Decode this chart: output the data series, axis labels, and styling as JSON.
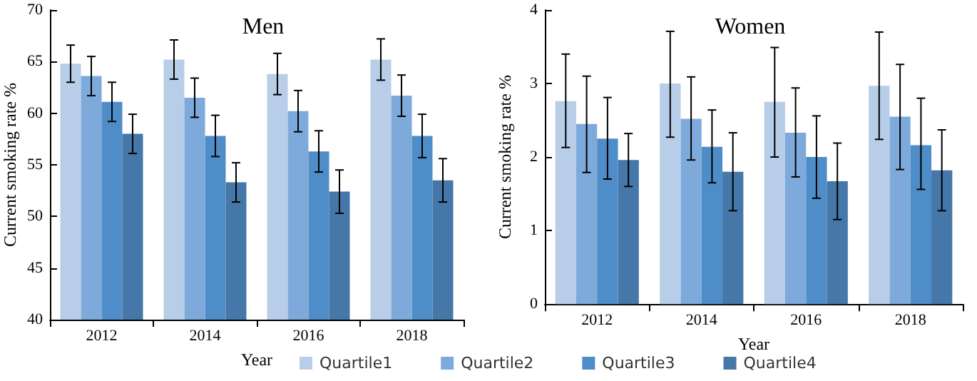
{
  "chart_data": [
    {
      "type": "bar",
      "title": "Men",
      "xlabel": "Year",
      "ylabel": "Current smoking rate %",
      "categories": [
        "2012",
        "2014",
        "2016",
        "2018"
      ],
      "ylim": [
        40,
        70
      ],
      "yticks": [
        40,
        45,
        50,
        55,
        60,
        65,
        70
      ],
      "grid": false,
      "legend": "bottom",
      "series": [
        {
          "name": "Quartile1",
          "color": "#b8cde8",
          "values": [
            64.8,
            65.2,
            63.8,
            65.2
          ],
          "errors": [
            1.8,
            1.9,
            2.0,
            2.0
          ]
        },
        {
          "name": "Quartile2",
          "color": "#7eaadb",
          "values": [
            63.6,
            61.5,
            60.2,
            61.7
          ],
          "errors": [
            1.9,
            1.9,
            2.0,
            2.0
          ]
        },
        {
          "name": "Quartile3",
          "color": "#4f8dc8",
          "values": [
            61.1,
            57.8,
            56.3,
            57.8
          ],
          "errors": [
            1.9,
            2.0,
            2.0,
            2.1
          ]
        },
        {
          "name": "Quartile4",
          "color": "#4577a8",
          "values": [
            58.0,
            53.3,
            52.4,
            53.5
          ],
          "errors": [
            1.9,
            1.9,
            2.1,
            2.1
          ]
        }
      ]
    },
    {
      "type": "bar",
      "title": "Women",
      "xlabel": "Year",
      "ylabel": "Current smoking rate %",
      "categories": [
        "2012",
        "2014",
        "2016",
        "2018"
      ],
      "ylim": [
        0,
        4
      ],
      "yticks": [
        0,
        1,
        2,
        3,
        4
      ],
      "grid": false,
      "series": [
        {
          "color": "#b8cde8",
          "values": [
            2.76,
            3.0,
            2.75,
            2.97
          ],
          "errors": [
            [
              2.13,
              3.4
            ],
            [
              2.27,
              3.71
            ],
            [
              2.0,
              3.49
            ],
            [
              2.24,
              3.7
            ]
          ]
        },
        {
          "color": "#7eaadb",
          "values": [
            2.45,
            2.52,
            2.33,
            2.55
          ],
          "errors": [
            [
              1.79,
              3.1
            ],
            [
              1.96,
              3.09
            ],
            [
              1.73,
              2.94
            ],
            [
              1.83,
              3.26
            ]
          ]
        },
        {
          "color": "#4f8dc8",
          "values": [
            2.25,
            2.14,
            2.0,
            2.16
          ],
          "errors": [
            [
              1.7,
              2.81
            ],
            [
              1.65,
              2.64
            ],
            [
              1.44,
              2.56
            ],
            [
              1.56,
              2.8
            ]
          ]
        },
        {
          "color": "#4577a8",
          "values": [
            1.96,
            1.8,
            1.67,
            1.82
          ],
          "errors": [
            [
              1.6,
              2.32
            ],
            [
              1.27,
              2.33
            ],
            [
              1.15,
              2.19
            ],
            [
              1.27,
              2.37
            ]
          ]
        }
      ]
    }
  ]
}
